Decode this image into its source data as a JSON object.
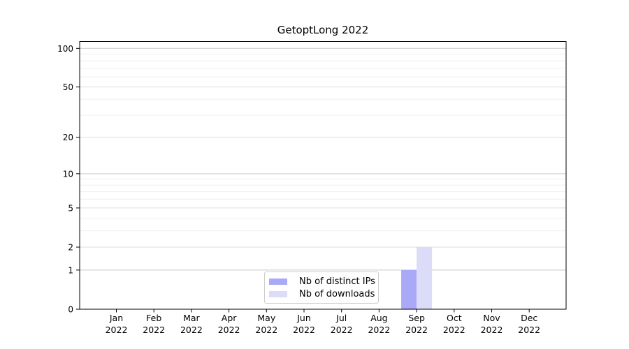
{
  "chart_data": {
    "type": "bar",
    "title": "GetoptLong 2022",
    "categories": [
      "Jan 2022",
      "Feb 2022",
      "Mar 2022",
      "Apr 2022",
      "May 2022",
      "Jun 2022",
      "Jul 2022",
      "Aug 2022",
      "Sep 2022",
      "Oct 2022",
      "Nov 2022",
      "Dec 2022"
    ],
    "series": [
      {
        "name": "Nb of distinct IPs",
        "color": "#a9a9f8",
        "values": [
          0,
          0,
          0,
          0,
          0,
          0,
          0,
          0,
          1,
          0,
          0,
          0
        ]
      },
      {
        "name": "Nb of downloads",
        "color": "#dcdcf8",
        "values": [
          0,
          0,
          0,
          0,
          0,
          0,
          0,
          0,
          2,
          0,
          0,
          0
        ]
      }
    ],
    "xlabel": "",
    "ylabel": "",
    "yscale": "log1p",
    "ylim": [
      0,
      113
    ],
    "yticks": [
      0,
      1,
      2,
      5,
      10,
      20,
      50,
      100
    ],
    "minor_yticks": [
      3,
      4,
      6,
      7,
      8,
      9,
      30,
      40,
      60,
      70,
      80,
      90
    ],
    "grid": "horizontal",
    "grid_color_power10": "#c9c9c9",
    "grid_color_major": "#dedede",
    "grid_color_minor": "#efefef",
    "axis_color": "#000000",
    "legend_position": "lower-center-inside"
  }
}
